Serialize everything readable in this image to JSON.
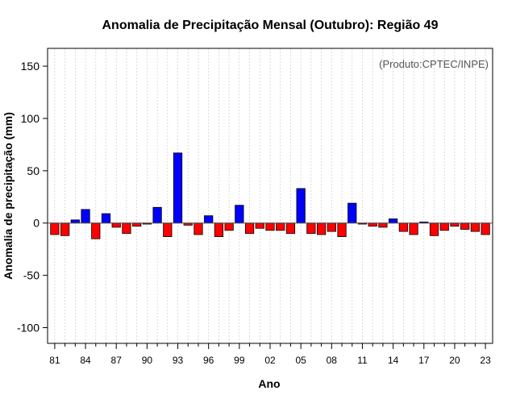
{
  "chart_data": {
    "type": "bar",
    "title": "Anomalia de Precipitação Mensal (Outubro): Região 49",
    "xlabel": "Ano",
    "ylabel": "Anomalia de precipitação (mm)",
    "credit": "(Produto:CPTEC/INPE)",
    "ylim": [
      -115,
      167
    ],
    "yticks": [
      -100,
      -50,
      0,
      50,
      100,
      150
    ],
    "ytick_labels": [
      "-100",
      "-50",
      "0",
      "50",
      "100",
      "150"
    ],
    "xtick_labels": [
      "81",
      "84",
      "87",
      "90",
      "93",
      "96",
      "99",
      "02",
      "05",
      "08",
      "11",
      "14",
      "17",
      "20",
      "23"
    ],
    "years": [
      1981,
      1982,
      1983,
      1984,
      1985,
      1986,
      1987,
      1988,
      1989,
      1990,
      1991,
      1992,
      1993,
      1994,
      1995,
      1996,
      1997,
      1998,
      1999,
      2000,
      2001,
      2002,
      2003,
      2004,
      2005,
      2006,
      2007,
      2008,
      2009,
      2010,
      2011,
      2012,
      2013,
      2014,
      2015,
      2016,
      2017,
      2018,
      2019,
      2020,
      2021,
      2022,
      2023
    ],
    "values": [
      -11,
      -12,
      3,
      13,
      -15,
      9,
      -4,
      -10,
      -3,
      -1,
      15,
      -13,
      67,
      -2,
      -11,
      7,
      -13,
      -7,
      17,
      -10,
      -5,
      -7,
      -7,
      -10,
      33,
      -10,
      -11,
      -8,
      -13,
      19,
      -1,
      -3,
      -4,
      4,
      -8,
      -11,
      1,
      -12,
      -7,
      -3,
      -6,
      -8,
      -11
    ],
    "positive_color": "#0000ff",
    "negative_color": "#ff0000",
    "grid": true
  }
}
